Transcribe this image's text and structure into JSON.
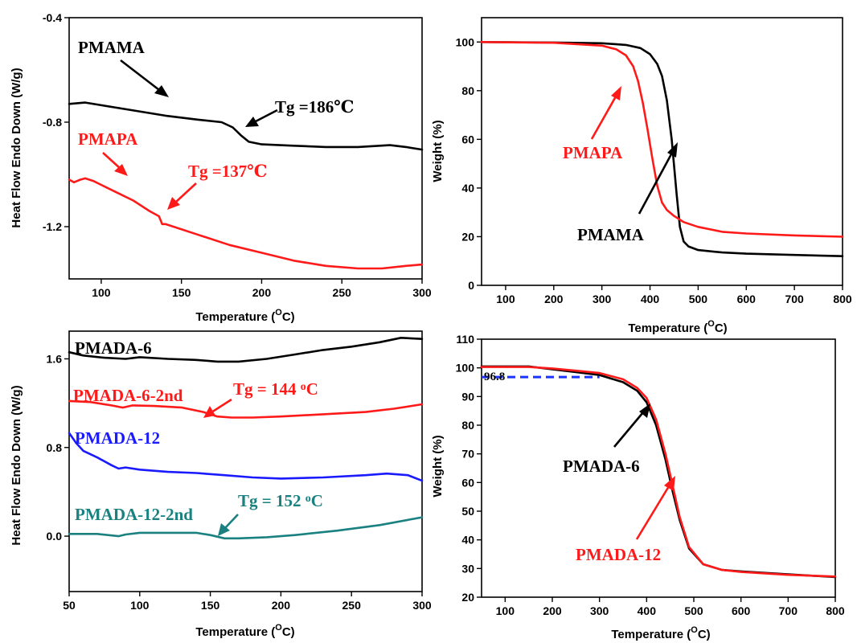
{
  "colors": {
    "black": "#000000",
    "red": "#ff1a1a",
    "blue": "#1a1aff",
    "teal": "#1a8080",
    "dashed": "#1a33ff"
  },
  "chart_data": [
    {
      "id": "dsc-top",
      "type": "line",
      "xlabel": "Temperature (",
      "xlabel_sup": "O",
      "xlabel_end": "C)",
      "ylabel": "Heat Flow Endo Down (W/g)",
      "xlim": [
        80,
        300
      ],
      "ylim": [
        -1.4,
        -0.4
      ],
      "xticks": [
        100,
        150,
        200,
        250,
        300
      ],
      "yticks": [
        -0.4,
        -0.8,
        -1.2
      ],
      "ytick_labels": [
        "-0.4",
        "-0.8",
        "-1.2"
      ],
      "series": [
        {
          "name": "PMAMA",
          "color": "#000000",
          "x": [
            80,
            90,
            100,
            120,
            140,
            160,
            175,
            182,
            187,
            192,
            200,
            220,
            240,
            260,
            280,
            290,
            300
          ],
          "y": [
            -0.73,
            -0.725,
            -0.735,
            -0.755,
            -0.775,
            -0.79,
            -0.8,
            -0.82,
            -0.85,
            -0.875,
            -0.885,
            -0.89,
            -0.895,
            -0.895,
            -0.888,
            -0.895,
            -0.905
          ]
        },
        {
          "name": "PMAPA",
          "color": "#ff1a1a",
          "x": [
            80,
            83,
            87,
            90,
            95,
            100,
            110,
            120,
            130,
            136,
            138,
            140,
            145,
            160,
            180,
            200,
            220,
            240,
            260,
            275,
            290,
            300
          ],
          "y": [
            -1.02,
            -1.03,
            -1.02,
            -1.015,
            -1.025,
            -1.04,
            -1.07,
            -1.1,
            -1.14,
            -1.16,
            -1.19,
            -1.19,
            -1.2,
            -1.23,
            -1.27,
            -1.3,
            -1.33,
            -1.35,
            -1.36,
            -1.36,
            -1.35,
            -1.345
          ]
        }
      ],
      "annotations": [
        {
          "text": "Tg =186℃",
          "color": "#000000"
        },
        {
          "text": "Tg =137℃",
          "color": "#ff1a1a"
        }
      ]
    },
    {
      "id": "tga-top",
      "type": "line",
      "xlabel": "Temperature (",
      "xlabel_sup": "O",
      "xlabel_end": "C)",
      "ylabel": "Weight (%)",
      "xlim": [
        50,
        800
      ],
      "ylim": [
        0,
        110
      ],
      "xticks": [
        100,
        200,
        300,
        400,
        500,
        600,
        700,
        800
      ],
      "yticks": [
        0,
        20,
        40,
        60,
        80,
        100
      ],
      "series": [
        {
          "name": "PMAMA",
          "color": "#000000",
          "x": [
            50,
            200,
            300,
            350,
            380,
            400,
            415,
            425,
            435,
            445,
            455,
            462,
            470,
            480,
            500,
            550,
            600,
            700,
            800
          ],
          "y": [
            100,
            99.8,
            99.5,
            98.8,
            97.5,
            95,
            91,
            86,
            76,
            60,
            38,
            24,
            18,
            16,
            14.5,
            13.5,
            13,
            12.5,
            12
          ]
        },
        {
          "name": "PMAPA",
          "color": "#ff1a1a",
          "x": [
            50,
            200,
            300,
            330,
            350,
            365,
            375,
            385,
            395,
            405,
            415,
            425,
            435,
            450,
            470,
            500,
            550,
            600,
            700,
            800
          ],
          "y": [
            100,
            99.7,
            98.5,
            97,
            94.5,
            90,
            84,
            75,
            64,
            52,
            41,
            34,
            31,
            28.5,
            26,
            24,
            22,
            21.3,
            20.5,
            20
          ]
        }
      ],
      "annotations": []
    },
    {
      "id": "dsc-bottom",
      "type": "line",
      "xlabel": "Temperature (",
      "xlabel_sup": "O",
      "xlabel_end": "C)",
      "ylabel": "Heat Flow Endo Down (W/g)",
      "xlim": [
        50,
        300
      ],
      "ylim": [
        -0.5,
        1.85
      ],
      "xticks": [
        50,
        100,
        150,
        200,
        250,
        300
      ],
      "yticks": [
        0.0,
        0.8,
        1.6
      ],
      "ytick_labels": [
        "0.0",
        "0.8",
        "1.6"
      ],
      "series": [
        {
          "name": "PMADA-6",
          "color": "#000000",
          "x": [
            50,
            60,
            75,
            90,
            100,
            120,
            140,
            155,
            170,
            190,
            210,
            230,
            250,
            270,
            285,
            300
          ],
          "y": [
            1.66,
            1.63,
            1.61,
            1.6,
            1.615,
            1.6,
            1.59,
            1.575,
            1.575,
            1.6,
            1.64,
            1.68,
            1.71,
            1.75,
            1.79,
            1.78
          ]
        },
        {
          "name": "PMADA-6-2nd",
          "color": "#ff1a1a",
          "x": [
            50,
            65,
            80,
            88,
            95,
            110,
            130,
            145,
            155,
            165,
            180,
            200,
            230,
            260,
            280,
            300
          ],
          "y": [
            1.22,
            1.21,
            1.18,
            1.16,
            1.18,
            1.175,
            1.16,
            1.12,
            1.08,
            1.07,
            1.07,
            1.08,
            1.1,
            1.12,
            1.15,
            1.19
          ]
        },
        {
          "name": "PMADA-12",
          "color": "#1a1aff",
          "x": [
            50,
            55,
            60,
            70,
            80,
            85,
            90,
            100,
            120,
            140,
            160,
            180,
            200,
            230,
            260,
            275,
            290,
            300
          ],
          "y": [
            0.93,
            0.84,
            0.77,
            0.71,
            0.64,
            0.61,
            0.62,
            0.6,
            0.58,
            0.57,
            0.55,
            0.53,
            0.52,
            0.53,
            0.55,
            0.565,
            0.55,
            0.5
          ]
        },
        {
          "name": "PMADA-12-2nd",
          "color": "#1a8080",
          "x": [
            50,
            70,
            85,
            90,
            100,
            120,
            140,
            150,
            160,
            170,
            190,
            210,
            240,
            270,
            300
          ],
          "y": [
            0.02,
            0.02,
            0.0,
            0.015,
            0.03,
            0.03,
            0.03,
            0.01,
            -0.02,
            -0.02,
            -0.01,
            0.01,
            0.05,
            0.1,
            0.17
          ]
        }
      ],
      "annotations": [
        {
          "text": "Tg = 144 ",
          "sup": "o",
          "end": "C",
          "color": "#ff1a1a"
        },
        {
          "text": "Tg = 152 ",
          "sup": "o",
          "end": "C",
          "color": "#1a8080"
        }
      ]
    },
    {
      "id": "tga-bottom",
      "type": "line",
      "xlabel": "Temperature (",
      "xlabel_sup": "O",
      "xlabel_end": "C)",
      "ylabel": "Weight (%)",
      "xlim": [
        50,
        800
      ],
      "ylim": [
        20,
        110
      ],
      "xticks": [
        100,
        200,
        300,
        400,
        500,
        600,
        700,
        800
      ],
      "yticks": [
        20,
        30,
        40,
        50,
        60,
        70,
        80,
        90,
        100,
        110
      ],
      "series": [
        {
          "name": "PMADA-6",
          "color": "#000000",
          "x": [
            50,
            150,
            200,
            250,
            300,
            350,
            380,
            400,
            420,
            440,
            455,
            470,
            490,
            520,
            560,
            600,
            700,
            800
          ],
          "y": [
            100.5,
            100.5,
            99.5,
            98.5,
            97.5,
            95,
            92,
            88,
            80,
            68,
            57,
            47,
            37,
            31.5,
            29.5,
            29,
            28,
            27
          ]
        },
        {
          "name": "PMADA-12",
          "color": "#ff1a1a",
          "x": [
            50,
            150,
            200,
            250,
            300,
            350,
            380,
            400,
            420,
            440,
            455,
            470,
            490,
            520,
            560,
            600,
            700,
            800
          ],
          "y": [
            100.3,
            100.3,
            99.8,
            99,
            98.2,
            96,
            93,
            89.5,
            82,
            70,
            59,
            48,
            37.5,
            31.5,
            29.5,
            28.8,
            27.8,
            27.2
          ]
        }
      ],
      "reference": {
        "label": "96.8",
        "y": 96.8,
        "x_end": 300
      },
      "annotations": []
    }
  ]
}
